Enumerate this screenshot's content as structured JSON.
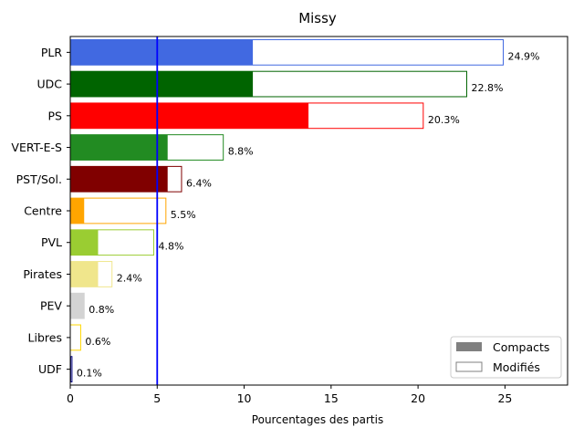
{
  "chart_data": {
    "type": "bar",
    "orientation": "horizontal",
    "title": "Missy",
    "xlabel": "Pourcentages des partis",
    "ylabel": "",
    "xlim": [
      0,
      28.6
    ],
    "xticks": [
      0,
      5,
      10,
      15,
      20,
      25
    ],
    "reference_line": {
      "x": 5,
      "color": "#0000ff"
    },
    "grid": false,
    "legend_position": "bottom-right",
    "legend": [
      {
        "label": "Compacts",
        "style": "filled",
        "color": "#808080"
      },
      {
        "label": "Modifiés",
        "style": "outline",
        "color": "#808080"
      }
    ],
    "categories": [
      "PLR",
      "UDC",
      "PS",
      "VERT-E-S",
      "PST/Sol.",
      "Centre",
      "PVL",
      "Pirates",
      "PEV",
      "Libres",
      "UDF"
    ],
    "colors": [
      "#4169e1",
      "#006400",
      "#ff0000",
      "#228b22",
      "#800000",
      "#ffa500",
      "#9acd32",
      "#f0e68c",
      "#d3d3d3",
      "#ffd700",
      "#000080"
    ],
    "series": [
      {
        "name": "Compacts",
        "values": [
          10.5,
          10.5,
          13.7,
          5.6,
          5.6,
          0.8,
          1.6,
          1.6,
          0.8,
          0.0,
          0.05
        ]
      },
      {
        "name": "Modifiés",
        "values": [
          24.9,
          22.8,
          20.3,
          8.8,
          6.4,
          5.5,
          4.8,
          2.4,
          0.8,
          0.6,
          0.1
        ]
      }
    ],
    "data_labels": [
      "24.9%",
      "22.8%",
      "20.3%",
      "8.8%",
      "6.4%",
      "5.5%",
      "4.8%",
      "2.4%",
      "0.8%",
      "0.6%",
      "0.1%"
    ]
  }
}
